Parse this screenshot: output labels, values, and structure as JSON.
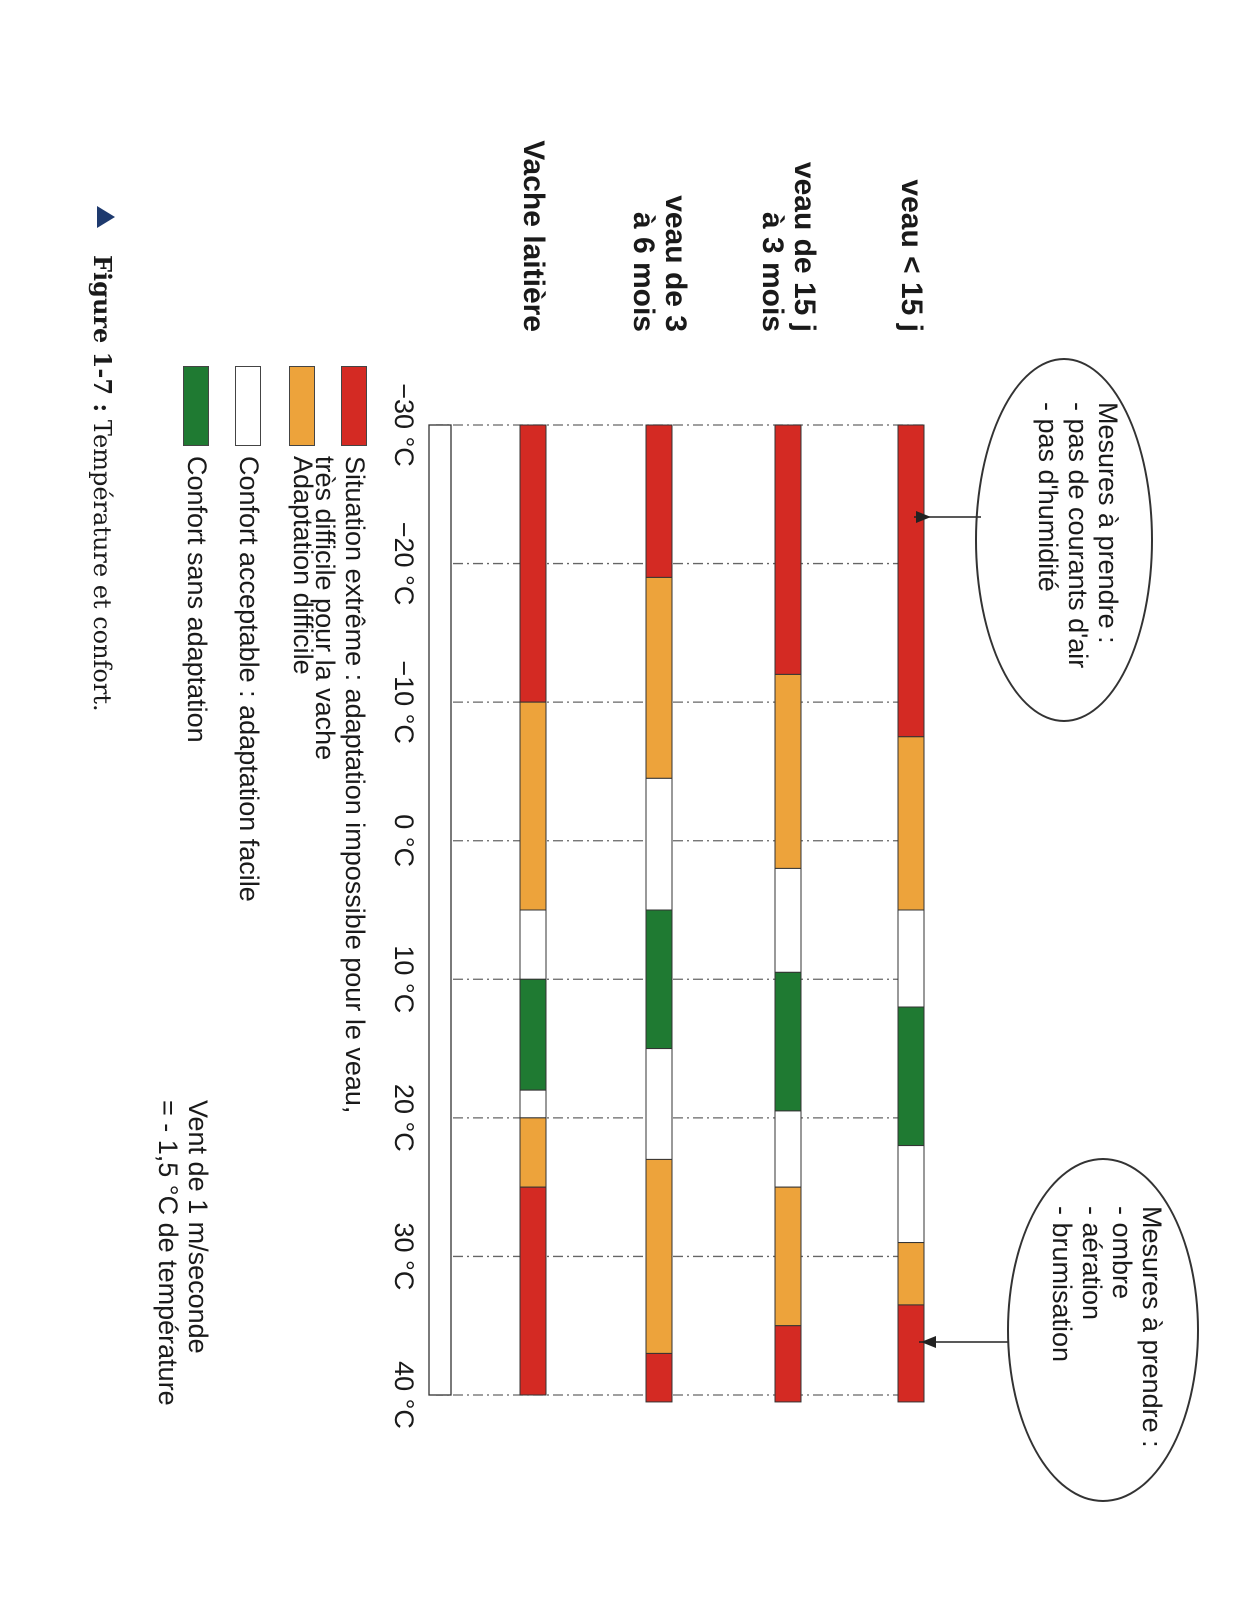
{
  "chart_data": {
    "type": "bar",
    "orientation": "horizontal stacked ranges",
    "x_unit": "°C",
    "xlim": [
      -30,
      40
    ],
    "tick_labels": [
      "−30 °C",
      "−20 °C",
      "−10 °C",
      "0 °C",
      "10 °C",
      "20 °C",
      "30 °C",
      "40 °C"
    ],
    "tick_values": [
      -30,
      -20,
      -10,
      0,
      10,
      20,
      30,
      40
    ],
    "rows": [
      {
        "label_lines": [
          "veau < 15 j"
        ],
        "segments": [
          {
            "from": -30,
            "to": -7.5,
            "cat": "extreme"
          },
          {
            "from": -7.5,
            "to": 5,
            "cat": "difficult"
          },
          {
            "from": 5,
            "to": 12,
            "cat": "acceptable"
          },
          {
            "from": 12,
            "to": 22,
            "cat": "comfort"
          },
          {
            "from": 22,
            "to": 29,
            "cat": "acceptable"
          },
          {
            "from": 29,
            "to": 33.5,
            "cat": "difficult"
          },
          {
            "from": 33.5,
            "to": 40.5,
            "cat": "extreme"
          }
        ]
      },
      {
        "label_lines": [
          "veau de 15 j",
          "à 3 mois"
        ],
        "segments": [
          {
            "from": -30,
            "to": -12,
            "cat": "extreme"
          },
          {
            "from": -12,
            "to": 2,
            "cat": "difficult"
          },
          {
            "from": 2,
            "to": 9.5,
            "cat": "acceptable"
          },
          {
            "from": 9.5,
            "to": 19.5,
            "cat": "comfort"
          },
          {
            "from": 19.5,
            "to": 25,
            "cat": "acceptable"
          },
          {
            "from": 25,
            "to": 35,
            "cat": "difficult"
          },
          {
            "from": 35,
            "to": 40.5,
            "cat": "extreme"
          }
        ]
      },
      {
        "label_lines": [
          "veau de 3",
          "à 6 mois"
        ],
        "segments": [
          {
            "from": -30,
            "to": -19,
            "cat": "extreme"
          },
          {
            "from": -19,
            "to": -4.5,
            "cat": "difficult"
          },
          {
            "from": -4.5,
            "to": 5,
            "cat": "acceptable"
          },
          {
            "from": 5,
            "to": 15,
            "cat": "comfort"
          },
          {
            "from": 15,
            "to": 23,
            "cat": "acceptable"
          },
          {
            "from": 23,
            "to": 37,
            "cat": "difficult"
          },
          {
            "from": 37,
            "to": 40.5,
            "cat": "extreme"
          }
        ]
      },
      {
        "label_lines": [
          "Vache laitière"
        ],
        "segments": [
          {
            "from": -30,
            "to": -10,
            "cat": "extreme"
          },
          {
            "from": -10,
            "to": 5,
            "cat": "difficult"
          },
          {
            "from": 5,
            "to": 10,
            "cat": "acceptable"
          },
          {
            "from": 10,
            "to": 18,
            "cat": "comfort"
          },
          {
            "from": 18,
            "to": 20,
            "cat": "acceptable"
          },
          {
            "from": 20,
            "to": 25,
            "cat": "difficult"
          },
          {
            "from": 25,
            "to": 40,
            "cat": "extreme"
          }
        ]
      }
    ],
    "categories": {
      "extreme": "#d42a23",
      "difficult": "#eda33b",
      "acceptable": "#ffffff",
      "comfort": "#1f7a32"
    },
    "legend": [
      {
        "cat": "extreme",
        "lines": [
          "Situation extrême : adaptation impossible pour le veau,",
          "très difficile pour la vache"
        ]
      },
      {
        "cat": "difficult",
        "lines": [
          "Adaptation difficile"
        ]
      },
      {
        "cat": "acceptable",
        "lines": [
          "Confort acceptable : adaptation facile"
        ]
      },
      {
        "cat": "comfort",
        "lines": [
          "Confort sans adaptation"
        ]
      }
    ],
    "annotations": [
      {
        "lines": [
          "Mesures à prendre :",
          "- pas de courants d'air",
          "- pas d'humidité"
        ]
      },
      {
        "lines": [
          "Mesures à prendre :",
          "- ombre",
          "- aération",
          "- brumisation"
        ]
      }
    ],
    "note": [
      "Vent de 1 m/seconde",
      "= - 1,5 °C de température"
    ],
    "grid": "dash-dot vertical lines at ticks"
  },
  "caption": {
    "label": "Figure 1-7 :",
    "text": " Température et confort."
  },
  "icons": {
    "caption_marker": "triangle-icon"
  }
}
